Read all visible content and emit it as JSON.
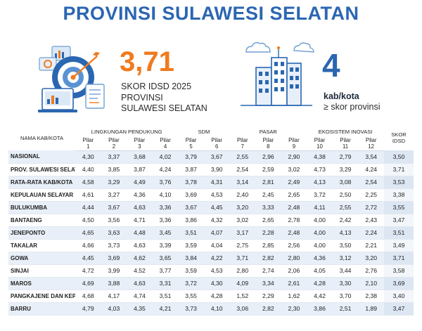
{
  "title": "PROVINSI SULAWESI SELATAN",
  "score": {
    "value": "3,71",
    "line1": "SKOR IDSD 2025",
    "line2": "PROVINSI",
    "line3": "SULAWESI SELATAN"
  },
  "count": {
    "value": "4",
    "label": "kab/kota",
    "sub": "≥ skor provinsi"
  },
  "colors": {
    "accent_blue": "#2b66b1",
    "accent_orange": "#f07b1e",
    "row_stripe": "#e8eff8"
  },
  "icons": {
    "left": "target-dashboard-illustration",
    "right": "city-buildings-illustration"
  },
  "table": {
    "name_header": "NAMA KAB/KOTA",
    "groups": {
      "lingkungan": "LINGKUNGAN PENDUKUNG",
      "sdm": "SDM",
      "pasar": "PASAR",
      "ekosistem": "EKOSISTEM INOVASI"
    },
    "skor_header": "SKOR IDSD",
    "pilar": [
      {
        "word": "Pilar",
        "num": "1"
      },
      {
        "word": "Pilar",
        "num": "2"
      },
      {
        "word": "Pilar",
        "num": "3"
      },
      {
        "word": "Pilar",
        "num": "4"
      },
      {
        "word": "Pilar",
        "num": "5"
      },
      {
        "word": "Pilar",
        "num": "6"
      },
      {
        "word": "Pilar",
        "num": "7"
      },
      {
        "word": "Pilar",
        "num": "8"
      },
      {
        "word": "Pilar",
        "num": "9"
      },
      {
        "word": "Pilar",
        "num": "10"
      },
      {
        "word": "Pilar",
        "num": "11"
      },
      {
        "word": "Pilar",
        "num": "12"
      }
    ],
    "rows": [
      {
        "name": "NASIONAL",
        "v": [
          "4,30",
          "3,37",
          "3,68",
          "4,02",
          "3,79",
          "3,67",
          "2,55",
          "2,96",
          "2,90",
          "4,38",
          "2,79",
          "3,54"
        ],
        "skor": "3,50"
      },
      {
        "name": "PROV. SULAWESI SELATAN",
        "v": [
          "4,40",
          "3,85",
          "3,87",
          "4,24",
          "3,87",
          "3,90",
          "2,54",
          "2,59",
          "3,02",
          "4,73",
          "3,29",
          "4,24"
        ],
        "skor": "3,71"
      },
      {
        "name": "RATA-RATA KAB/KOTA",
        "v": [
          "4,58",
          "3,29",
          "4,49",
          "3,76",
          "3,78",
          "4,31",
          "3,14",
          "2,81",
          "2,49",
          "4,13",
          "3,08",
          "2,54"
        ],
        "skor": "3,53"
      },
      {
        "name": "KEPULAUAN SELAYAR",
        "v": [
          "4,61",
          "3,27",
          "4,36",
          "4,10",
          "3,69",
          "4,53",
          "2,40",
          "2,45",
          "2,65",
          "3,72",
          "2,50",
          "2,25"
        ],
        "skor": "3,38"
      },
      {
        "name": "BULUKUMBA",
        "v": [
          "4,44",
          "3,67",
          "4,63",
          "3,36",
          "3,67",
          "4,45",
          "3,20",
          "3,33",
          "2,48",
          "4,11",
          "2,55",
          "2,72"
        ],
        "skor": "3,55"
      },
      {
        "name": "BANTAENG",
        "v": [
          "4,50",
          "3,56",
          "4,71",
          "3,36",
          "3,86",
          "4,32",
          "3,02",
          "2,65",
          "2,78",
          "4,00",
          "2,42",
          "2,43"
        ],
        "skor": "3,47"
      },
      {
        "name": "JENEPONTO",
        "v": [
          "4,65",
          "3,63",
          "4,48",
          "3,45",
          "3,51",
          "4,07",
          "3,17",
          "2,28",
          "2,48",
          "4,00",
          "4,13",
          "2,24"
        ],
        "skor": "3,51"
      },
      {
        "name": "TAKALAR",
        "v": [
          "4,66",
          "3,73",
          "4,63",
          "3,39",
          "3,59",
          "4,04",
          "2,75",
          "2,85",
          "2,56",
          "4,00",
          "3,50",
          "2,21"
        ],
        "skor": "3,49"
      },
      {
        "name": "GOWA",
        "v": [
          "4,45",
          "3,69",
          "4,62",
          "3,65",
          "3,84",
          "4,22",
          "3,71",
          "2,82",
          "2,80",
          "4,36",
          "3,12",
          "3,20"
        ],
        "skor": "3,71"
      },
      {
        "name": "SINJAI",
        "v": [
          "4,72",
          "3,99",
          "4,52",
          "3,77",
          "3,59",
          "4,53",
          "2,80",
          "2,74",
          "2,06",
          "4,05",
          "3,44",
          "2,76"
        ],
        "skor": "3,58"
      },
      {
        "name": "MAROS",
        "v": [
          "4,69",
          "3,88",
          "4,63",
          "3,31",
          "3,72",
          "4,30",
          "4,09",
          "3,34",
          "2,61",
          "4,28",
          "3,30",
          "2,10"
        ],
        "skor": "3,69"
      },
      {
        "name": "PANGKAJENE DAN KEPULAUAN",
        "v": [
          "4,68",
          "4,17",
          "4,74",
          "3,51",
          "3,55",
          "4,28",
          "1,52",
          "2,29",
          "1,62",
          "4,42",
          "3,70",
          "2,38"
        ],
        "skor": "3,40"
      },
      {
        "name": "BARRU",
        "v": [
          "4,79",
          "4,03",
          "4,35",
          "4,21",
          "3,73",
          "4,10",
          "3,06",
          "2,82",
          "2,30",
          "3,86",
          "2,51",
          "1,89"
        ],
        "skor": "3,47"
      }
    ]
  }
}
